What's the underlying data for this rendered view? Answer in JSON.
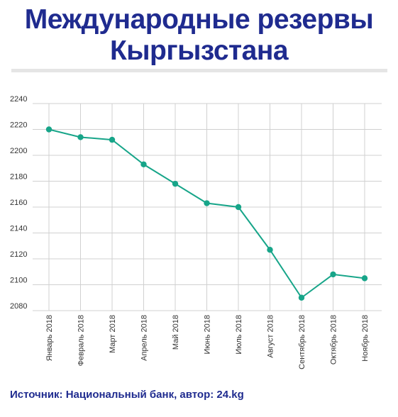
{
  "title_line1": "Международные резервы",
  "title_line2": "Кыргызстана",
  "source": "Источник: Национальный банк, автор: 24.kg",
  "colors": {
    "title": "#1f2b8f",
    "line": "#17a589",
    "grid": "#d0d0d0",
    "divider": "#e5e5e5"
  },
  "chart_data": {
    "type": "line",
    "categories": [
      "Январь 2018",
      "Февраль 2018",
      "Март 2018",
      "Апрель 2018",
      "Май 2018",
      "Июнь 2018",
      "Июль 2018",
      "Август 2018",
      "Сентябрь 2018",
      "Октябрь 2018",
      "Ноябрь 2018"
    ],
    "series": [
      {
        "values": [
          2220,
          2214,
          2212,
          2193,
          2178,
          2163,
          2160,
          2127,
          2090,
          2108,
          2105
        ]
      }
    ],
    "yticks": [
      2080,
      2100,
      2120,
      2140,
      2160,
      2180,
      2200,
      2220,
      2240
    ],
    "ylim": [
      2080,
      2240
    ],
    "grid": true,
    "xlabel": "",
    "ylabel": "",
    "legend": "none"
  }
}
